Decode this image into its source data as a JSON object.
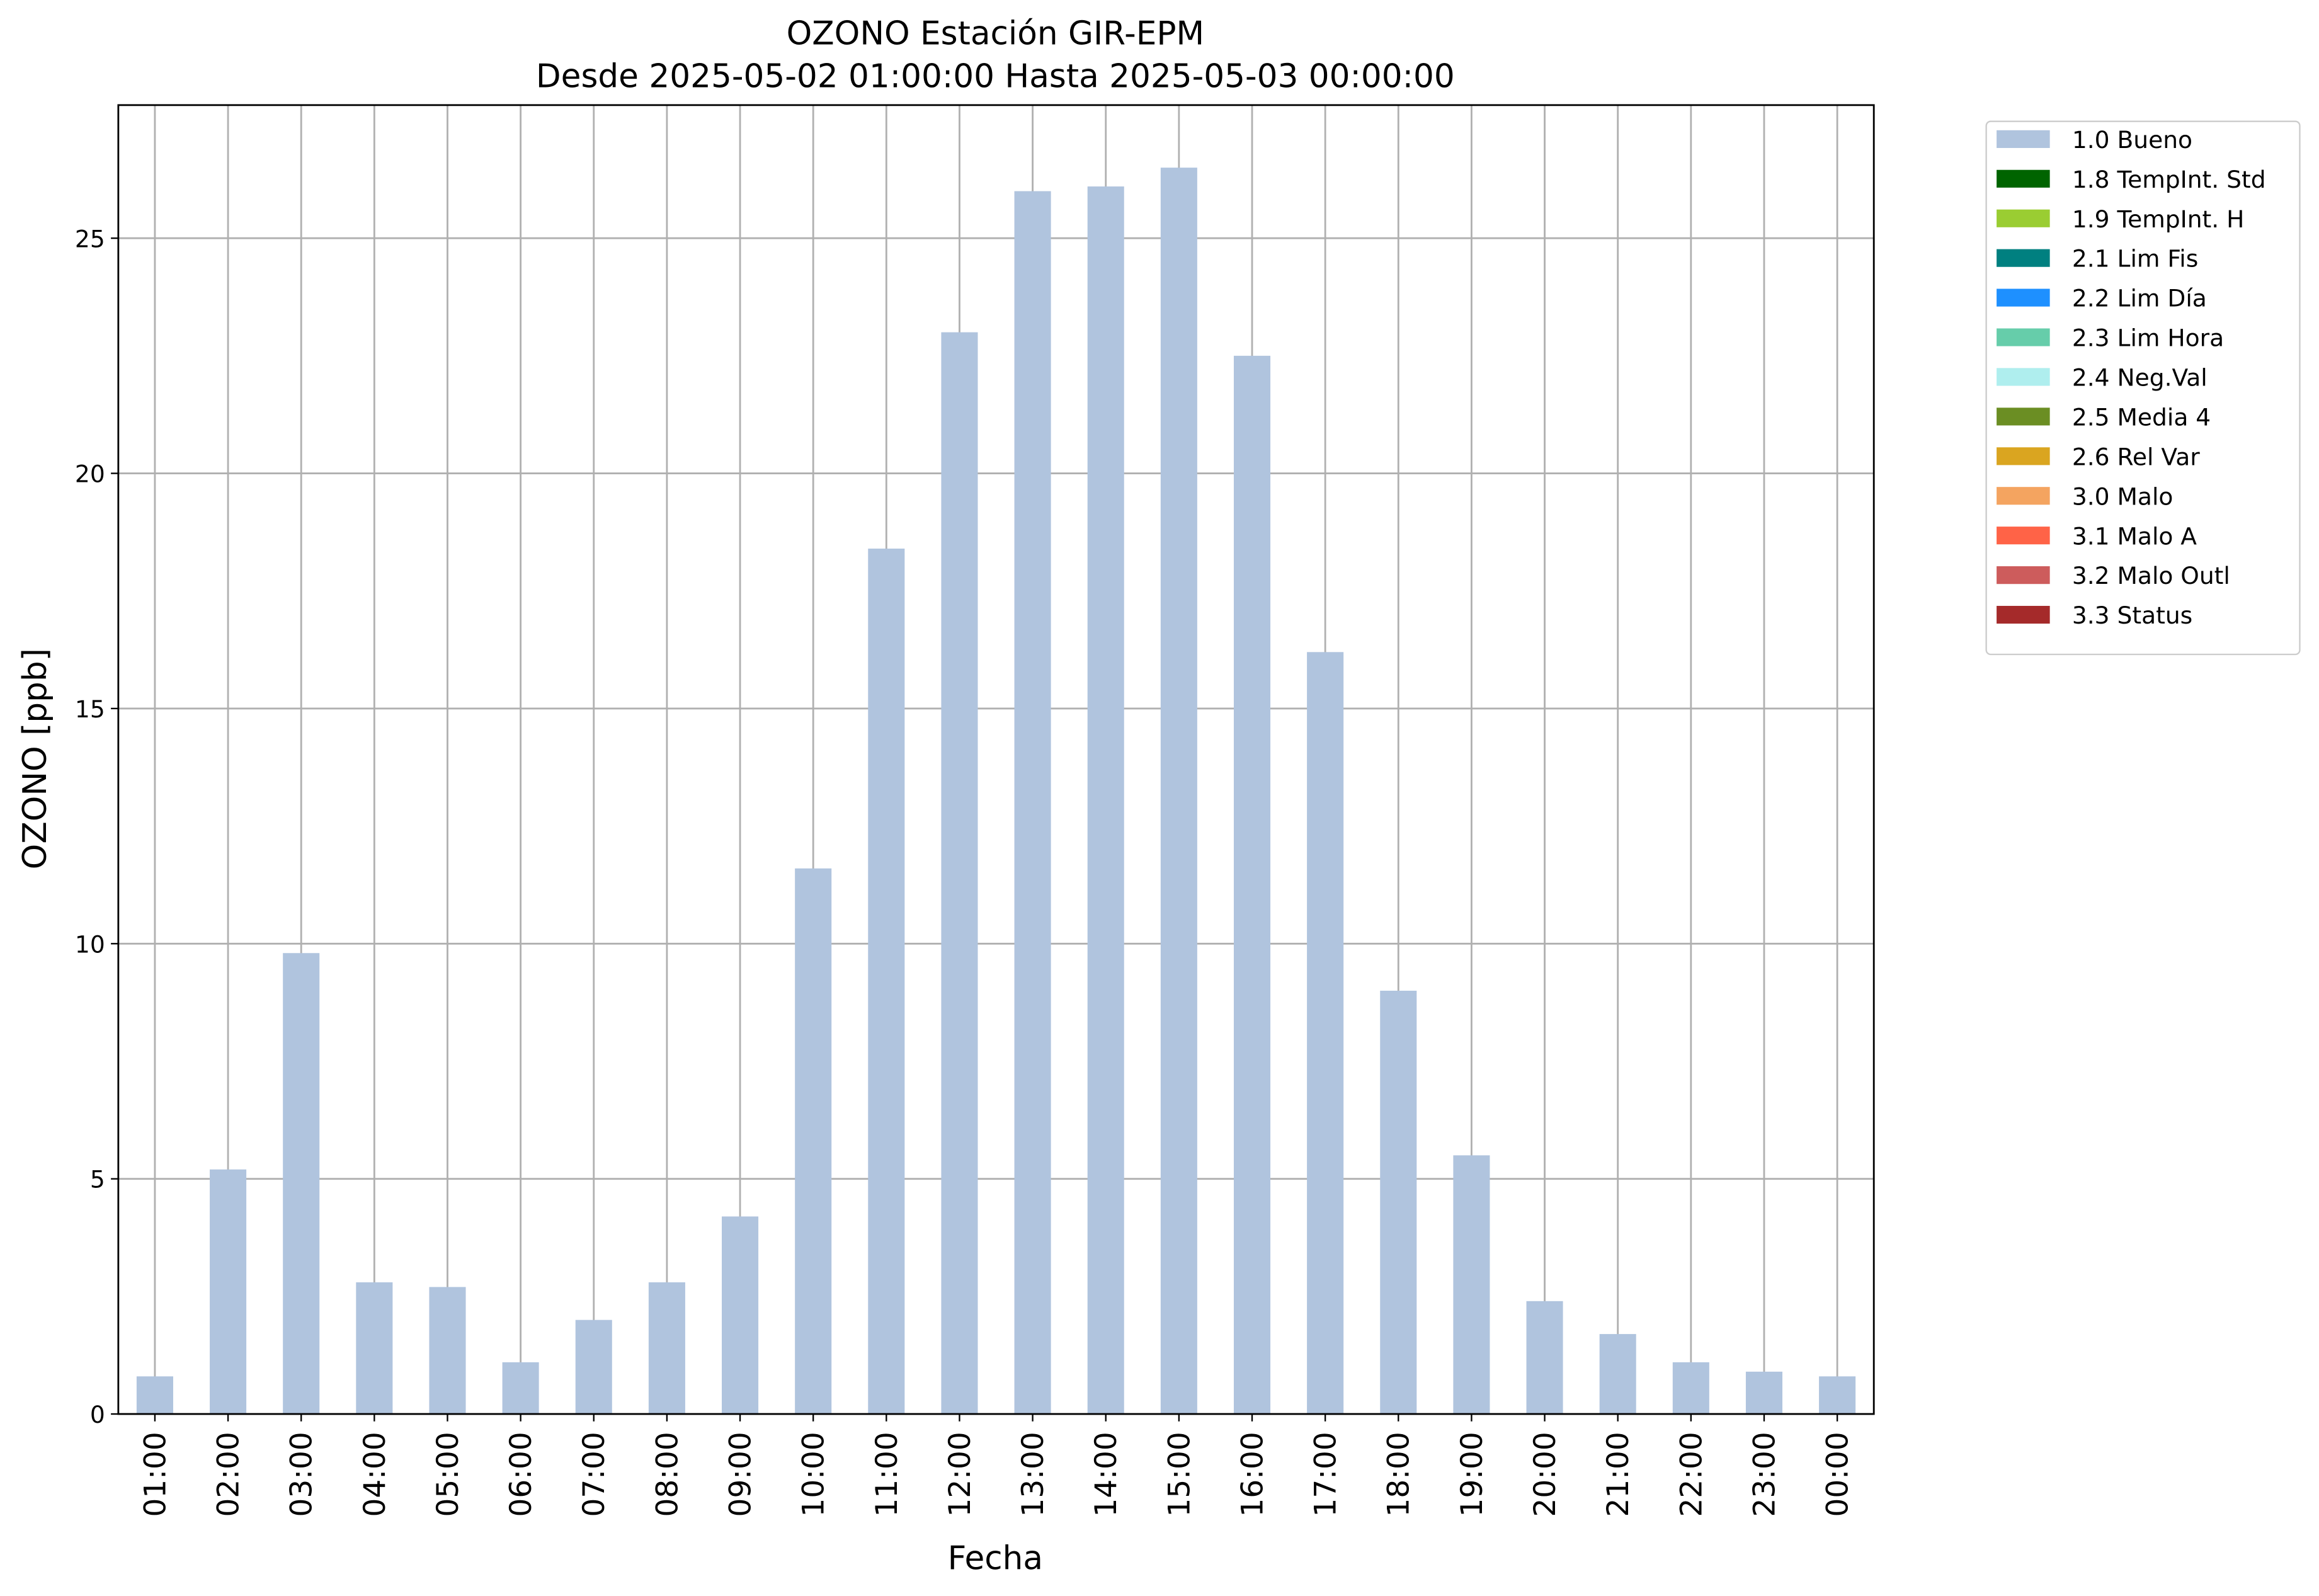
{
  "chart_data": {
    "type": "bar",
    "title": "OZONO Estación GIR-EPM",
    "subtitle": "Desde 2025-05-02 01:00:00 Hasta 2025-05-03 00:00:00",
    "x_label": "Fecha",
    "y_label": "OZONO [ppb]",
    "categories": [
      "01:00",
      "02:00",
      "03:00",
      "04:00",
      "05:00",
      "06:00",
      "07:00",
      "08:00",
      "09:00",
      "10:00",
      "11:00",
      "12:00",
      "13:00",
      "14:00",
      "15:00",
      "16:00",
      "17:00",
      "18:00",
      "19:00",
      "20:00",
      "21:00",
      "22:00",
      "23:00",
      "00:00"
    ],
    "series": [
      {
        "name": "1.0 Bueno",
        "color": "#b0c4de",
        "values": [
          0.8,
          5.2,
          9.8,
          2.8,
          2.7,
          1.1,
          2.0,
          2.8,
          4.2,
          11.6,
          18.4,
          23.0,
          26.0,
          26.1,
          26.5,
          22.5,
          16.2,
          9.0,
          5.5,
          2.4,
          1.7,
          1.1,
          0.9,
          0.8
        ]
      },
      {
        "name": "1.8 TempInt. Std",
        "color": "#006400",
        "values": [
          null,
          null,
          null,
          null,
          null,
          null,
          null,
          null,
          null,
          null,
          null,
          null,
          null,
          null,
          null,
          null,
          null,
          null,
          null,
          null,
          null,
          null,
          null,
          null
        ]
      },
      {
        "name": "1.9 TempInt. H",
        "color": "#9acd32",
        "values": [
          null,
          null,
          null,
          null,
          null,
          null,
          null,
          null,
          null,
          null,
          null,
          null,
          null,
          null,
          null,
          null,
          null,
          null,
          null,
          null,
          null,
          null,
          null,
          null
        ]
      },
      {
        "name": "2.1 Lim Fis",
        "color": "#008080",
        "values": [
          null,
          null,
          null,
          null,
          null,
          null,
          null,
          null,
          null,
          null,
          null,
          null,
          null,
          null,
          null,
          null,
          null,
          null,
          null,
          null,
          null,
          null,
          null,
          null
        ]
      },
      {
        "name": "2.2 Lim Día",
        "color": "#1e90ff",
        "values": [
          null,
          null,
          null,
          null,
          null,
          null,
          null,
          null,
          null,
          null,
          null,
          null,
          null,
          null,
          null,
          null,
          null,
          null,
          null,
          null,
          null,
          null,
          null,
          null
        ]
      },
      {
        "name": "2.3 Lim Hora",
        "color": "#66cdaa",
        "values": [
          null,
          null,
          null,
          null,
          null,
          null,
          null,
          null,
          null,
          null,
          null,
          null,
          null,
          null,
          null,
          null,
          null,
          null,
          null,
          null,
          null,
          null,
          null,
          null
        ]
      },
      {
        "name": "2.4 Neg.Val",
        "color": "#afeeee",
        "values": [
          null,
          null,
          null,
          null,
          null,
          null,
          null,
          null,
          null,
          null,
          null,
          null,
          null,
          null,
          null,
          null,
          null,
          null,
          null,
          null,
          null,
          null,
          null,
          null
        ]
      },
      {
        "name": "2.5 Media 4",
        "color": "#6b8e23",
        "values": [
          null,
          null,
          null,
          null,
          null,
          null,
          null,
          null,
          null,
          null,
          null,
          null,
          null,
          null,
          null,
          null,
          null,
          null,
          null,
          null,
          null,
          null,
          null,
          null
        ]
      },
      {
        "name": "2.6 Rel Var",
        "color": "#daa520",
        "values": [
          null,
          null,
          null,
          null,
          null,
          null,
          null,
          null,
          null,
          null,
          null,
          null,
          null,
          null,
          null,
          null,
          null,
          null,
          null,
          null,
          null,
          null,
          null,
          null
        ]
      },
      {
        "name": "3.0 Malo",
        "color": "#f4a460",
        "values": [
          null,
          null,
          null,
          null,
          null,
          null,
          null,
          null,
          null,
          null,
          null,
          null,
          null,
          null,
          null,
          null,
          null,
          null,
          null,
          null,
          null,
          null,
          null,
          null
        ]
      },
      {
        "name": "3.1 Malo A",
        "color": "#ff6347",
        "values": [
          null,
          null,
          null,
          null,
          null,
          null,
          null,
          null,
          null,
          null,
          null,
          null,
          null,
          null,
          null,
          null,
          null,
          null,
          null,
          null,
          null,
          null,
          null,
          null
        ]
      },
      {
        "name": "3.2 Malo Outl",
        "color": "#cd5c5c",
        "values": [
          null,
          null,
          null,
          null,
          null,
          null,
          null,
          null,
          null,
          null,
          null,
          null,
          null,
          null,
          null,
          null,
          null,
          null,
          null,
          null,
          null,
          null,
          null,
          null
        ]
      },
      {
        "name": "3.3 Status",
        "color": "#a52a2a",
        "values": [
          null,
          null,
          null,
          null,
          null,
          null,
          null,
          null,
          null,
          null,
          null,
          null,
          null,
          null,
          null,
          null,
          null,
          null,
          null,
          null,
          null,
          null,
          null,
          null
        ]
      }
    ],
    "ylim": [
      0,
      27.83
    ],
    "yticks": [
      0,
      5,
      10,
      15,
      20,
      25
    ],
    "grid": true,
    "legend": "outside-upper-right"
  }
}
